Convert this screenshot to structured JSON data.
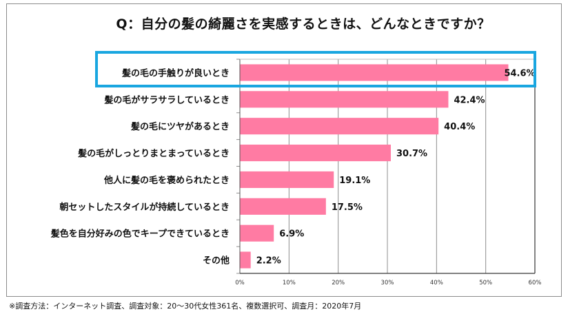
{
  "chart_data": {
    "type": "bar",
    "orientation": "horizontal",
    "title": "Q：自分の髪の綺麗さを実感するときは、どんなときですか？",
    "categories": [
      "髪の毛の手触りが良いとき",
      "髪の毛がサラサラしているとき",
      "髪の毛にツヤがあるとき",
      "髪の毛がしっとりまとまっているとき",
      "他人に髪の毛を褒められたとき",
      "朝セットしたスタイルが持続しているとき",
      "髪色を自分好みの色でキープできているとき",
      "その他"
    ],
    "values": [
      54.6,
      42.4,
      40.4,
      30.7,
      19.1,
      17.5,
      6.9,
      2.2
    ],
    "value_labels": [
      "54.6%",
      "42.4%",
      "40.4%",
      "30.7%",
      "19.1%",
      "17.5%",
      "6.9%",
      "2.2%"
    ],
    "xlim": [
      0,
      60
    ],
    "xticks": [
      0,
      10,
      20,
      30,
      40,
      50,
      60
    ],
    "xtick_labels": [
      "0%",
      "10%",
      "20%",
      "30%",
      "40%",
      "50%",
      "60%"
    ],
    "xlabel": "",
    "ylabel": "",
    "grid": "vertical",
    "highlighted_category": "髪の毛の手触りが良いとき",
    "bar_color": "#ff7ba3",
    "highlight_color": "#19a6e0"
  },
  "footnote": "※調査方法：インターネット調査、調査対象：20～30代女性361名、複数選択可、調査月：2020年7月"
}
